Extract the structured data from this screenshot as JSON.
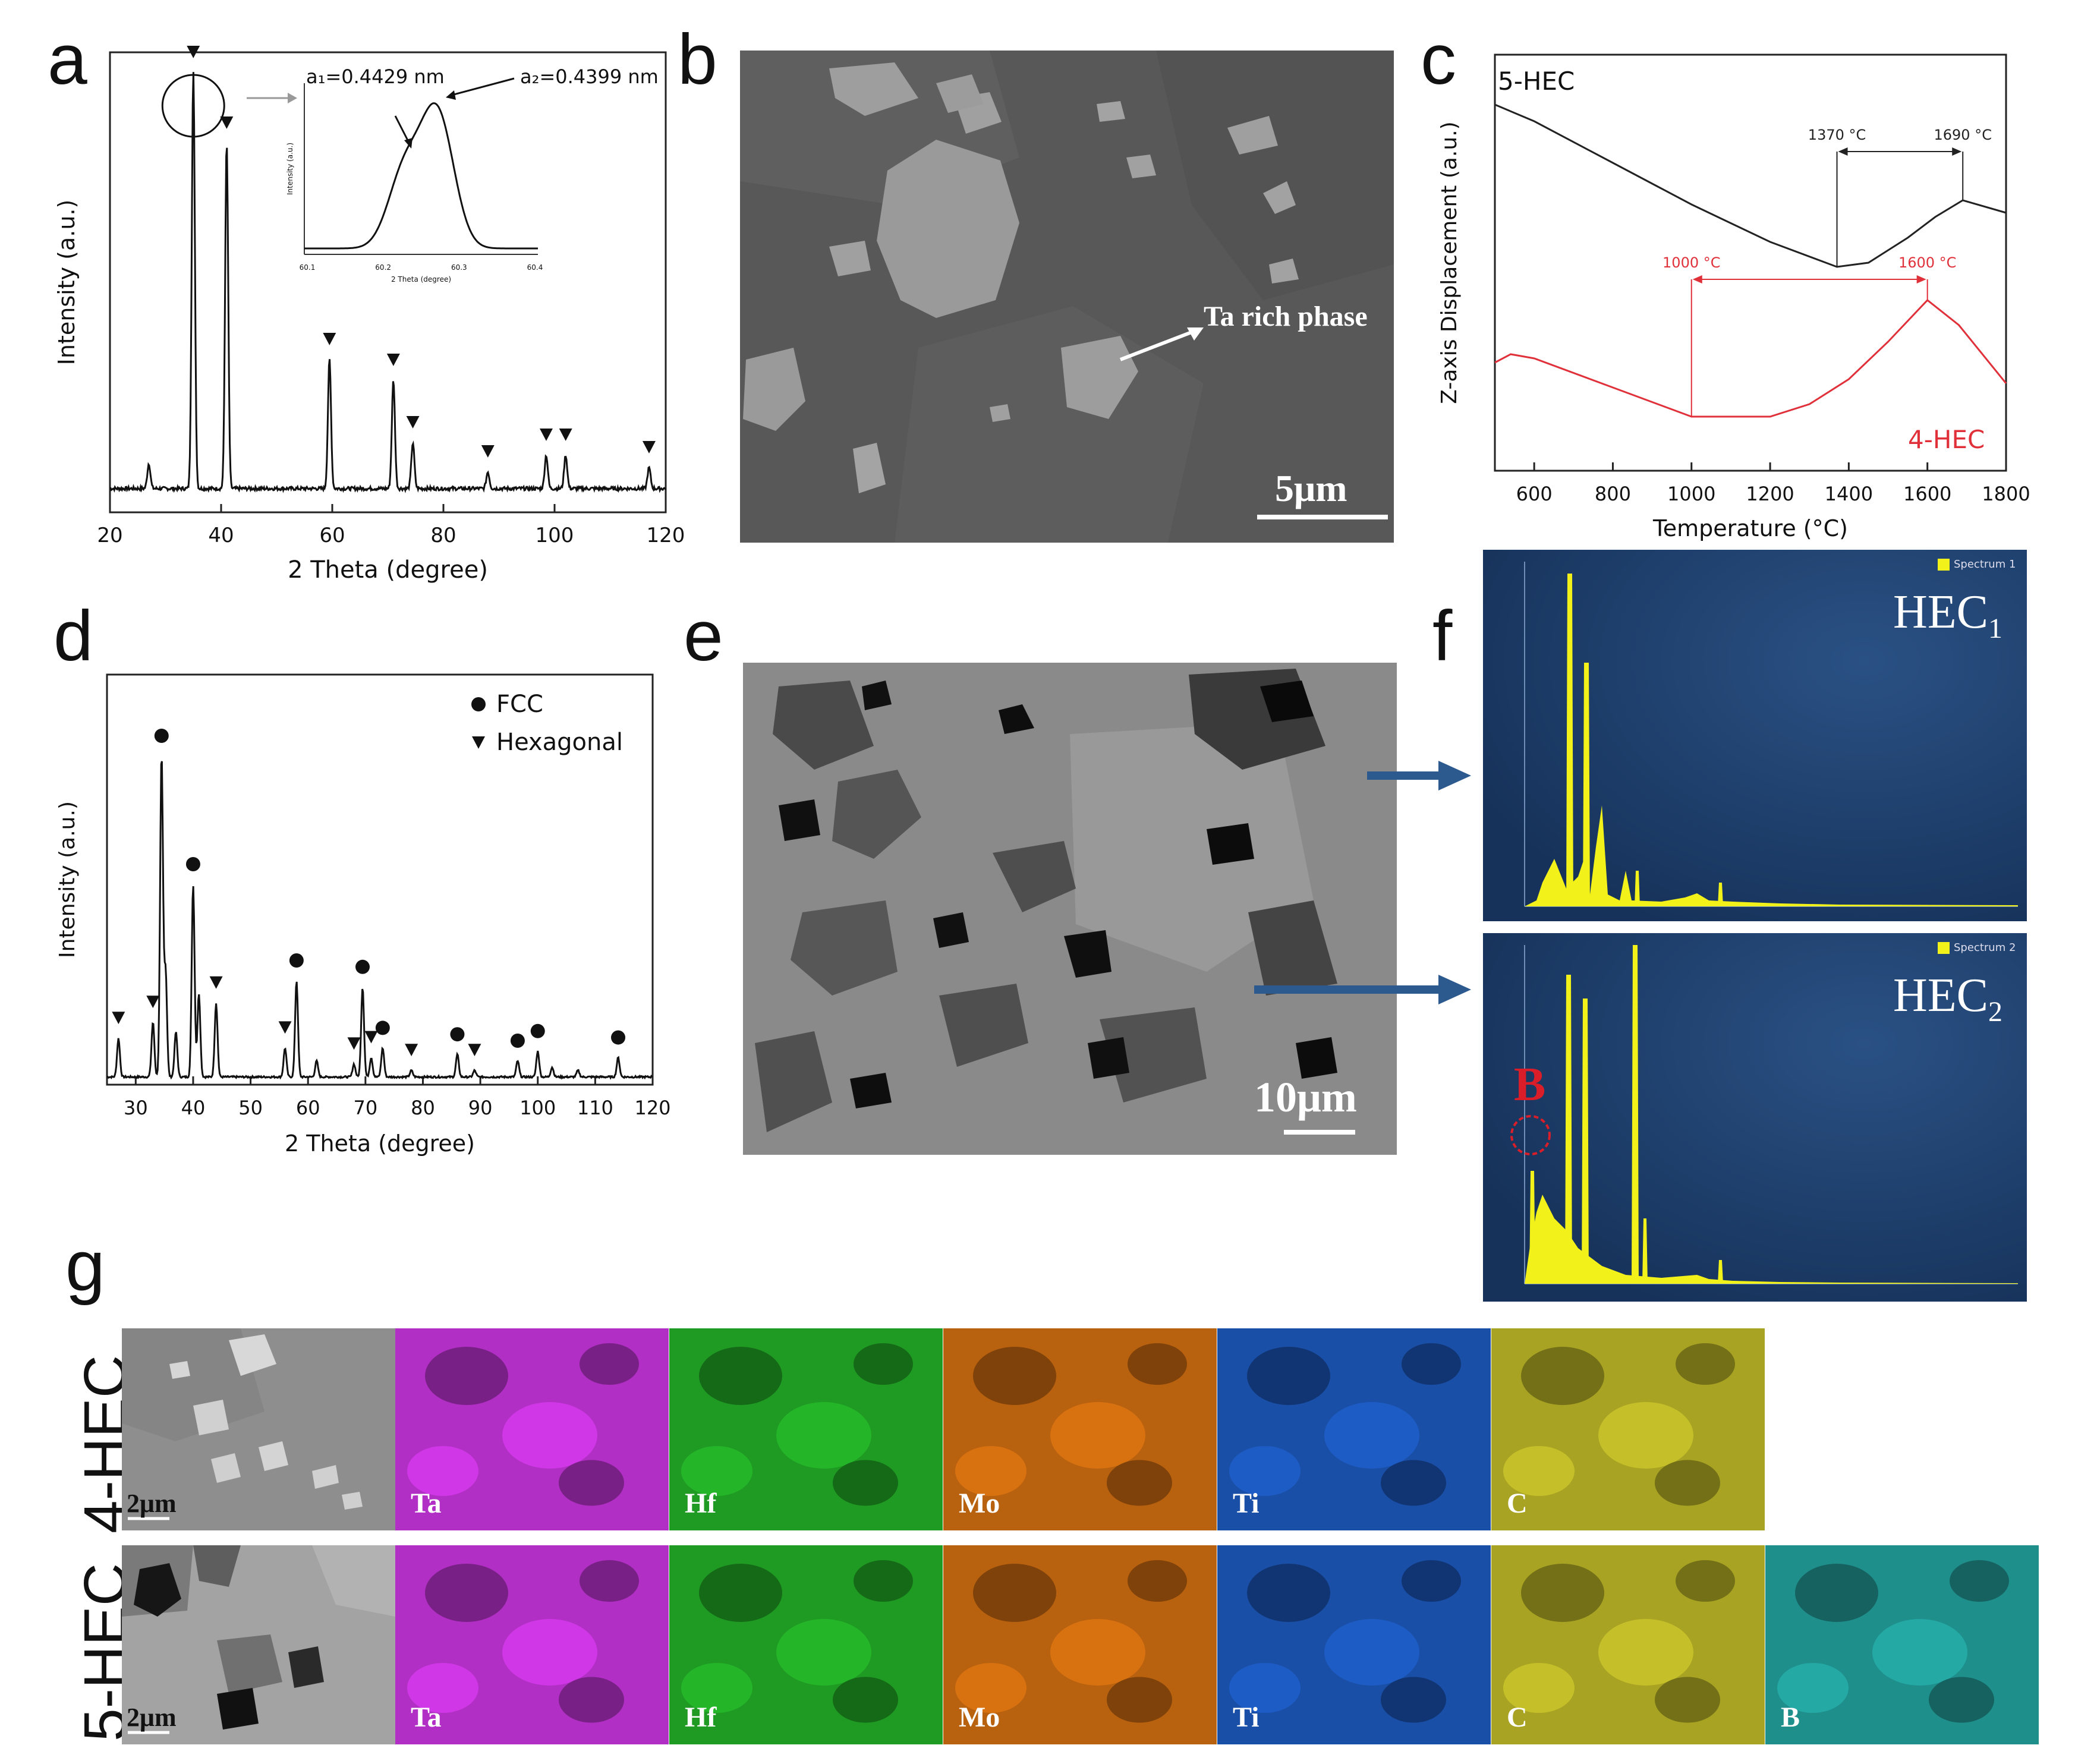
{
  "panel_letters": [
    "a",
    "b",
    "c",
    "d",
    "e",
    "f",
    "g"
  ],
  "panel_a": {
    "inset": {
      "a1_label": "a₁=0.4429 nm",
      "a2_label": "a₂=0.4399 nm",
      "ylabel": "Intensity (a.u.)",
      "xlabel": "2 Theta (degree)",
      "xticks": [
        "60.1",
        "60.2",
        "60.3",
        "60.4"
      ]
    }
  },
  "panel_b": {
    "annotation": "Ta rich phase",
    "scale": "5μm"
  },
  "panel_e": {
    "scale": "10μm"
  },
  "panel_f": {
    "spectrum1_title": "HEC",
    "spectrum1_sub": "1",
    "spectrum2_title": "HEC",
    "spectrum2_sub": "2",
    "b_label": "B",
    "legend1": "Spectrum 1",
    "legend2": "Spectrum 2"
  },
  "panel_g": {
    "row1_label": "4-HEC",
    "row2_label": "5-HEC",
    "scale": "2μm",
    "row1_elements": [
      "Ta",
      "Hf",
      "Mo",
      "Ti",
      "C"
    ],
    "row2_elements": [
      "Ta",
      "Hf",
      "Mo",
      "Ti",
      "C",
      "B"
    ],
    "colors": {
      "Ta": "#b12fc4",
      "Hf": "#1f9a23",
      "Mo": "#b8610f",
      "Ti": "#1a4fa8",
      "C": "#a8a323",
      "B": "#1f8f8c"
    }
  },
  "chart_data": [
    {
      "id": "a",
      "type": "line",
      "xlabel": "2 Theta (degree)",
      "ylabel": "Intensity (a.u.)",
      "xlim": [
        20,
        120
      ],
      "xticks": [
        20,
        40,
        60,
        80,
        100,
        120
      ],
      "peaks": [
        {
          "x": 27.0,
          "h": 0.06
        },
        {
          "x": 35.0,
          "h": 1.0,
          "marker": true
        },
        {
          "x": 41.0,
          "h": 0.83,
          "marker": true
        },
        {
          "x": 59.5,
          "h": 0.31,
          "marker": true
        },
        {
          "x": 71.0,
          "h": 0.26,
          "marker": true
        },
        {
          "x": 74.5,
          "h": 0.11,
          "marker": true
        },
        {
          "x": 88.0,
          "h": 0.04,
          "marker": true
        },
        {
          "x": 98.5,
          "h": 0.08,
          "marker": true
        },
        {
          "x": 102.0,
          "h": 0.08,
          "marker": true
        },
        {
          "x": 117.0,
          "h": 0.05,
          "marker": true
        }
      ],
      "grid": false
    },
    {
      "id": "c",
      "type": "line",
      "xlabel": "Temperature (°C)",
      "ylabel": "Z-axis Displacement (a.u.)",
      "xlim": [
        500,
        1800
      ],
      "xticks": [
        600,
        800,
        1000,
        1200,
        1400,
        1600,
        1800
      ],
      "ylim": [
        0,
        1
      ],
      "series": [
        {
          "name": "5-HEC",
          "color": "#222222",
          "x": [
            500,
            600,
            800,
            1000,
            1200,
            1370,
            1450,
            1550,
            1620,
            1690,
            1800
          ],
          "y": [
            0.88,
            0.84,
            0.74,
            0.64,
            0.55,
            0.49,
            0.5,
            0.56,
            0.61,
            0.65,
            0.62
          ]
        },
        {
          "name": "4-HEC",
          "color": "#e0303a",
          "x": [
            500,
            540,
            600,
            800,
            1000,
            1200,
            1300,
            1400,
            1500,
            1600,
            1680,
            1800
          ],
          "y": [
            0.26,
            0.28,
            0.27,
            0.2,
            0.13,
            0.13,
            0.16,
            0.22,
            0.31,
            0.41,
            0.35,
            0.21
          ]
        }
      ],
      "annotations": [
        {
          "text": "1370 °C",
          "x": 1370,
          "series": "5-HEC"
        },
        {
          "text": "1690 °C",
          "x": 1690,
          "series": "5-HEC"
        },
        {
          "text": "1000 °C",
          "x": 1000,
          "series": "4-HEC"
        },
        {
          "text": "1600 °C",
          "x": 1600,
          "series": "4-HEC"
        }
      ],
      "grid": false
    },
    {
      "id": "d",
      "type": "line",
      "xlabel": "2 Theta (degree)",
      "ylabel": "Intensity (a.u.)",
      "xlim": [
        25,
        120
      ],
      "xticks": [
        30,
        40,
        50,
        60,
        70,
        80,
        90,
        100,
        110,
        120
      ],
      "legend": [
        {
          "marker": "circle",
          "label": "FCC"
        },
        {
          "marker": "triangle",
          "label": "Hexagonal"
        }
      ],
      "legend_position": "top-right",
      "peaks": [
        {
          "x": 27.0,
          "h": 0.12,
          "marker": "triangle"
        },
        {
          "x": 33.0,
          "h": 0.17,
          "marker": "triangle"
        },
        {
          "x": 34.5,
          "h": 1.0,
          "marker": "circle"
        },
        {
          "x": 35.2,
          "h": 0.33
        },
        {
          "x": 37.0,
          "h": 0.14
        },
        {
          "x": 40.0,
          "h": 0.6,
          "marker": "circle"
        },
        {
          "x": 41.0,
          "h": 0.26
        },
        {
          "x": 44.0,
          "h": 0.23,
          "marker": "triangle"
        },
        {
          "x": 56.0,
          "h": 0.09,
          "marker": "triangle"
        },
        {
          "x": 58.0,
          "h": 0.3,
          "marker": "circle"
        },
        {
          "x": 61.5,
          "h": 0.05
        },
        {
          "x": 68.0,
          "h": 0.04,
          "marker": "triangle"
        },
        {
          "x": 69.5,
          "h": 0.28,
          "marker": "circle"
        },
        {
          "x": 71.0,
          "h": 0.06,
          "marker": "triangle"
        },
        {
          "x": 73.0,
          "h": 0.09,
          "marker": "circle"
        },
        {
          "x": 78.0,
          "h": 0.02,
          "marker": "triangle"
        },
        {
          "x": 86.0,
          "h": 0.07,
          "marker": "circle"
        },
        {
          "x": 89.0,
          "h": 0.02,
          "marker": "triangle"
        },
        {
          "x": 96.5,
          "h": 0.05,
          "marker": "circle"
        },
        {
          "x": 100.0,
          "h": 0.08,
          "marker": "circle"
        },
        {
          "x": 102.5,
          "h": 0.03
        },
        {
          "x": 107.0,
          "h": 0.02
        },
        {
          "x": 114.0,
          "h": 0.06,
          "marker": "circle"
        }
      ],
      "grid": false
    }
  ]
}
